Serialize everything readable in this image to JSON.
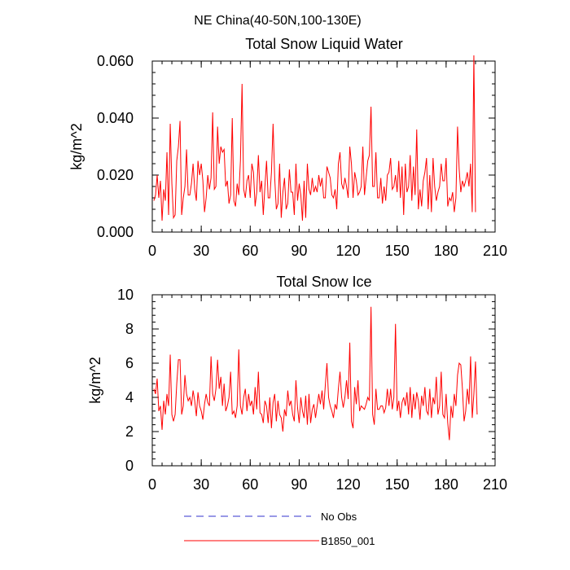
{
  "suptitle": "NE China(40-50N,100-130E)",
  "colors": {
    "model": "#ff0000",
    "obs": "#3333cc",
    "axis": "#000000"
  },
  "chart_data": [
    {
      "type": "line",
      "title": "Total Snow Liquid Water",
      "xlabel": "",
      "ylabel": "kg/m^2",
      "xlim": [
        0,
        210
      ],
      "ylim": [
        0,
        0.06
      ],
      "x_ticks": [
        0,
        30,
        60,
        90,
        120,
        150,
        180,
        210
      ],
      "x_tick_labels": [
        "0",
        "30",
        "60",
        "90",
        "120",
        "150",
        "180",
        "210"
      ],
      "y_ticks": [
        0,
        0.02,
        0.04,
        0.06
      ],
      "y_tick_labels": [
        "0.000",
        "0.020",
        "0.040",
        "0.060"
      ],
      "grid": false,
      "series": [
        {
          "name": "B1850_001",
          "values": [
            0.011,
            0.013,
            0.02,
            0.012,
            0.018,
            0.004,
            0.015,
            0.011,
            0.028,
            0.006,
            0.038,
            0.017,
            0.005,
            0.006,
            0.025,
            0.03,
            0.039,
            0.006,
            0.012,
            0.016,
            0.029,
            0.013,
            0.013,
            0.017,
            0.024,
            0.015,
            0.011,
            0.025,
            0.02,
            0.024,
            0.018,
            0.007,
            0.012,
            0.02,
            0.015,
            0.019,
            0.042,
            0.015,
            0.016,
            0.037,
            0.024,
            0.03,
            0.028,
            0.029,
            0.016,
            0.018,
            0.01,
            0.013,
            0.04,
            0.011,
            0.009,
            0.017,
            0.013,
            0.025,
            0.052,
            0.015,
            0.012,
            0.018,
            0.02,
            0.012,
            0.024,
            0.021,
            0.009,
            0.014,
            0.027,
            0.014,
            0.018,
            0.006,
            0.016,
            0.025,
            0.012,
            0.012,
            0.021,
            0.038,
            0.019,
            0.008,
            0.01,
            0.024,
            0.005,
            0.014,
            0.019,
            0.008,
            0.01,
            0.022,
            0.014,
            0.014,
            0.006,
            0.024,
            0.011,
            0.017,
            0.013,
            0.004,
            0.018,
            0.005,
            0.024,
            0.015,
            0.013,
            0.019,
            0.014,
            0.016,
            0.014,
            0.02,
            0.016,
            0.019,
            0.012,
            0.012,
            0.023,
            0.021,
            0.019,
            0.013,
            0.012,
            0.015,
            0.008,
            0.024,
            0.028,
            0.017,
            0.015,
            0.019,
            0.016,
            0.012,
            0.03,
            0.024,
            0.012,
            0.021,
            0.018,
            0.013,
            0.014,
            0.016,
            0.03,
            0.013,
            0.019,
            0.025,
            0.027,
            0.044,
            0.016,
            0.016,
            0.028,
            0.012,
            0.012,
            0.019,
            0.01,
            0.016,
            0.011,
            0.02,
            0.021,
            0.026,
            0.015,
            0.016,
            0.02,
            0.014,
            0.025,
            0.012,
            0.023,
            0.006,
            0.024,
            0.014,
            0.016,
            0.027,
            0.011,
            0.023,
            0.013,
            0.036,
            0.008,
            0.015,
            0.009,
            0.018,
            0.021,
            0.026,
            0.008,
            0.02,
            0.007,
            0.026,
            0.016,
            0.011,
            0.014,
            0.016,
            0.024,
            0.018,
            0.018,
            0.026,
            0.009,
            0.012,
            0.011,
            0.014,
            0.007,
            0.012,
            0.037,
            0.022,
            0.014,
            0.018,
            0.016,
            0.018,
            0.021,
            0.016,
            0.024,
            0.007,
            0.062,
            0.007
          ]
        }
      ]
    },
    {
      "type": "line",
      "title": "Total Snow Ice",
      "xlabel": "",
      "ylabel": "kg/m^2",
      "xlim": [
        0,
        210
      ],
      "ylim": [
        0,
        10
      ],
      "x_ticks": [
        0,
        30,
        60,
        90,
        120,
        150,
        180,
        210
      ],
      "x_tick_labels": [
        "0",
        "30",
        "60",
        "90",
        "120",
        "150",
        "180",
        "210"
      ],
      "y_ticks": [
        0,
        2,
        4,
        6,
        8,
        10
      ],
      "y_tick_labels": [
        "0",
        "2",
        "4",
        "6",
        "8",
        "10"
      ],
      "grid": false,
      "series": [
        {
          "name": "B1850_001",
          "values": [
            4.5,
            4.2,
            5.1,
            3.2,
            3.5,
            2.1,
            3.8,
            3.0,
            4.2,
            3.5,
            6.5,
            3.0,
            2.6,
            3.0,
            4.8,
            6.2,
            6.2,
            3.0,
            3.5,
            5.3,
            4.2,
            3.8,
            4.0,
            3.5,
            4.4,
            3.8,
            2.9,
            4.3,
            3.5,
            3.2,
            2.7,
            3.6,
            4.2,
            3.7,
            3.5,
            6.4,
            4.2,
            3.8,
            4.5,
            6.2,
            4.5,
            5.2,
            3.5,
            4.8,
            3.2,
            3.5,
            4.0,
            5.5,
            3.0,
            3.2,
            2.8,
            3.5,
            6.8,
            3.5,
            3.0,
            4.0,
            4.5,
            3.2,
            4.2,
            3.5,
            3.8,
            3.0,
            4.6,
            3.3,
            5.5,
            3.1,
            3.0,
            2.5,
            3.8,
            3.5,
            2.5,
            4.0,
            2.2,
            3.7,
            4.2,
            2.6,
            3.8,
            3.0,
            2.8,
            2.0,
            3.3,
            2.9,
            4.4,
            3.5,
            3.8,
            3.0,
            2.6,
            5.0,
            3.4,
            2.5,
            4.0,
            3.2,
            2.8,
            4.1,
            2.4,
            4.2,
            2.5,
            3.3,
            3.6,
            2.8,
            3.5,
            4.2,
            3.6,
            4.4,
            3.3,
            4.7,
            6.0,
            4.0,
            3.5,
            3.2,
            2.8,
            3.6,
            3.3,
            4.5,
            5.5,
            4.0,
            3.4,
            4.0,
            5.0,
            3.9,
            7.2,
            2.6,
            2.2,
            4.6,
            3.6,
            5.0,
            3.2,
            3.5,
            3.4,
            3.3,
            3.6,
            4.0,
            3.8,
            9.3,
            3.0,
            2.4,
            4.5,
            3.3,
            3.3,
            3.5,
            3.5,
            3.1,
            3.4,
            4.5,
            3.5,
            4.5,
            3.3,
            4.0,
            8.3,
            3.2,
            3.8,
            2.8,
            3.7,
            4.0,
            3.5,
            4.3,
            3.0,
            4.6,
            2.8,
            4.2,
            3.3,
            4.3,
            3.8,
            2.7,
            4.1,
            3.5,
            4.6,
            3.2,
            3.0,
            4.5,
            2.8,
            4.0,
            3.6,
            5.2,
            3.0,
            3.5,
            5.5,
            3.0,
            2.8,
            4.2,
            2.5,
            1.5,
            3.5,
            2.8,
            4.2,
            3.5,
            5.3,
            6.0,
            5.9,
            4.5,
            2.6,
            3.2,
            4.5,
            3.6,
            6.4,
            2.8,
            4.2,
            6.1,
            3.0
          ]
        }
      ]
    }
  ],
  "legend": [
    {
      "label": "No Obs",
      "style": "dashed",
      "color_key": "obs"
    },
    {
      "label": "B1850_001",
      "style": "solid",
      "color_key": "model"
    }
  ]
}
